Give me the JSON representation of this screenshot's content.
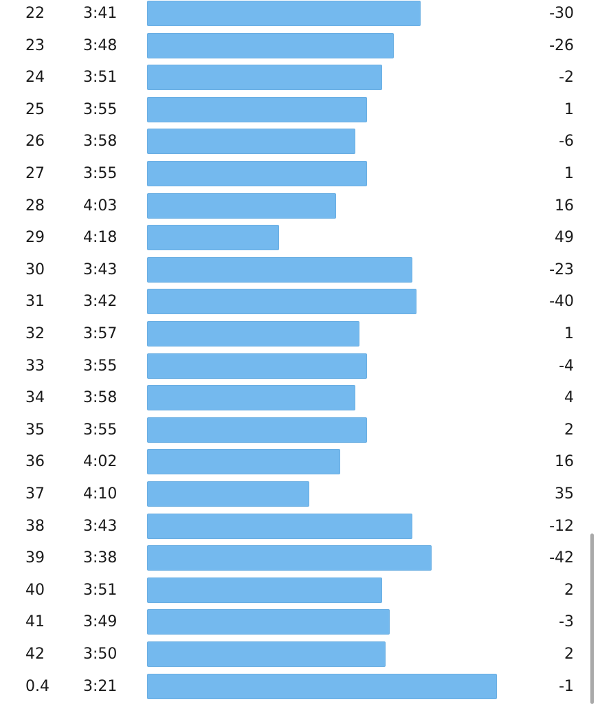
{
  "colors": {
    "bar": "#74b9ee",
    "scrollbar": "#a9a9a9",
    "text": "#1a1a1a"
  },
  "splits": {
    "pace_scale": {
      "slowest_seconds": 266,
      "fastest_seconds": 201
    },
    "rows": [
      {
        "km": "22",
        "pace": "3:41",
        "elevation": "-30"
      },
      {
        "km": "23",
        "pace": "3:48",
        "elevation": "-26"
      },
      {
        "km": "24",
        "pace": "3:51",
        "elevation": "-2"
      },
      {
        "km": "25",
        "pace": "3:55",
        "elevation": "1"
      },
      {
        "km": "26",
        "pace": "3:58",
        "elevation": "-6"
      },
      {
        "km": "27",
        "pace": "3:55",
        "elevation": "1"
      },
      {
        "km": "28",
        "pace": "4:03",
        "elevation": "16"
      },
      {
        "km": "29",
        "pace": "4:18",
        "elevation": "49"
      },
      {
        "km": "30",
        "pace": "3:43",
        "elevation": "-23"
      },
      {
        "km": "31",
        "pace": "3:42",
        "elevation": "-40"
      },
      {
        "km": "32",
        "pace": "3:57",
        "elevation": "1"
      },
      {
        "km": "33",
        "pace": "3:55",
        "elevation": "-4"
      },
      {
        "km": "34",
        "pace": "3:58",
        "elevation": "4"
      },
      {
        "km": "35",
        "pace": "3:55",
        "elevation": "2"
      },
      {
        "km": "36",
        "pace": "4:02",
        "elevation": "16"
      },
      {
        "km": "37",
        "pace": "4:10",
        "elevation": "35"
      },
      {
        "km": "38",
        "pace": "3:43",
        "elevation": "-12"
      },
      {
        "km": "39",
        "pace": "3:38",
        "elevation": "-42"
      },
      {
        "km": "40",
        "pace": "3:51",
        "elevation": "2"
      },
      {
        "km": "41",
        "pace": "3:49",
        "elevation": "-3"
      },
      {
        "km": "42",
        "pace": "3:50",
        "elevation": "2"
      },
      {
        "km": "0.4",
        "pace": "3:21",
        "elevation": "-1"
      }
    ]
  }
}
